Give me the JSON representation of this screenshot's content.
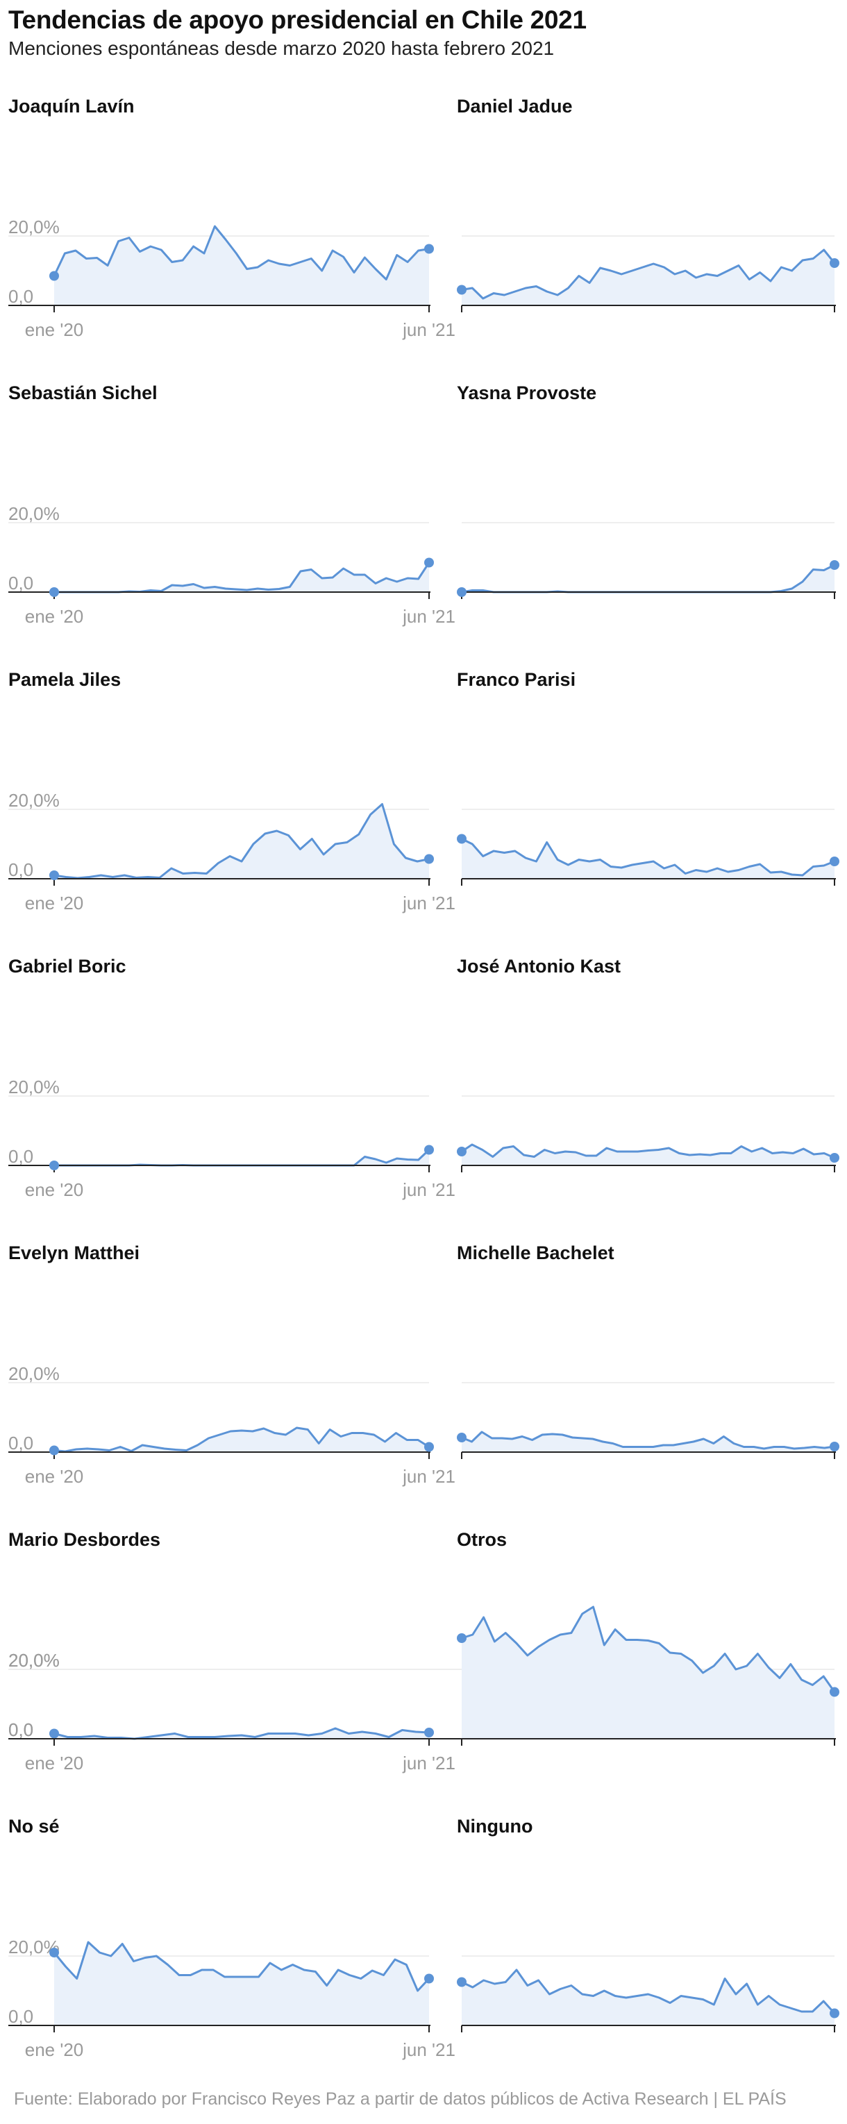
{
  "title": "Tendencias de apoyo presidencial en Chile 2021",
  "subtitle": "Menciones espontáneas desde marzo 2020 hasta febrero 2021",
  "source": "Fuente: Elaborado por Francisco Reyes Paz a partir de datos públicos de Activa Research | EL PAÍS",
  "colors": {
    "line": "#5b93d6",
    "area": "#eaf1fa",
    "axis": "#222222",
    "grid": "#dddddd",
    "tick_label": "#9a9a9a"
  },
  "chart_data": [
    {
      "type": "area",
      "title": "Joaquín Lavín",
      "y_ticks": [
        "20,0%",
        "0,0"
      ],
      "x_ticks": [
        "ene '20",
        "jun '21"
      ],
      "ylim": [
        0,
        30
      ],
      "values": [
        8.5,
        15,
        15.8,
        13.5,
        13.7,
        11.5,
        18.5,
        19.5,
        15.5,
        17,
        16,
        12.5,
        13,
        17,
        15,
        22.8,
        19,
        15,
        10.5,
        11,
        13,
        12,
        11.5,
        12.5,
        13.5,
        10,
        15.8,
        14,
        9.5,
        13.8,
        10.5,
        7.5,
        14.5,
        12.5,
        15.8,
        16.3
      ]
    },
    {
      "type": "area",
      "title": "Daniel Jadue",
      "y_ticks": [],
      "x_ticks": [],
      "ylim": [
        0,
        30
      ],
      "values": [
        4.5,
        5,
        2,
        3.5,
        3,
        4,
        5,
        5.5,
        4,
        3,
        5,
        8.5,
        6.5,
        10.8,
        10,
        9,
        10,
        11,
        12,
        11,
        9,
        10,
        8,
        9,
        8.5,
        10,
        11.5,
        7.5,
        9.5,
        7,
        11,
        10,
        13,
        13.5,
        16,
        12.2
      ]
    },
    {
      "type": "area",
      "title": "Sebastián Sichel",
      "y_ticks": [
        "20,0%",
        "0,0"
      ],
      "x_ticks": [
        "ene '20",
        "jun '21"
      ],
      "ylim": [
        0,
        30
      ],
      "values": [
        0,
        0,
        0,
        0,
        0,
        0,
        0,
        0.2,
        0.1,
        0.5,
        0.3,
        2,
        1.8,
        2.3,
        1.2,
        1.5,
        1,
        0.8,
        0.6,
        1,
        0.7,
        0.9,
        1.5,
        6,
        6.5,
        4,
        4.2,
        6.8,
        5,
        5,
        2.5,
        4,
        3,
        4,
        3.8,
        8.5
      ]
    },
    {
      "type": "area",
      "title": "Yasna Provoste",
      "y_ticks": [],
      "x_ticks": [],
      "ylim": [
        0,
        30
      ],
      "values": [
        0,
        0.5,
        0.5,
        0,
        0,
        0,
        0,
        0,
        0,
        0.2,
        0,
        0,
        0,
        0,
        0,
        0,
        0,
        0,
        0,
        0,
        0,
        0,
        0,
        0,
        0,
        0,
        0,
        0,
        0,
        0,
        0.3,
        1,
        3,
        6.5,
        6.3,
        7.8
      ]
    },
    {
      "type": "area",
      "title": "Pamela Jiles",
      "y_ticks": [
        "20,0%",
        "0,0"
      ],
      "x_ticks": [
        "ene '20",
        "jun '21"
      ],
      "ylim": [
        0,
        30
      ],
      "values": [
        1,
        0.5,
        0.2,
        0.5,
        1,
        0.5,
        1,
        0.3,
        0.5,
        0.3,
        3,
        1.5,
        1.7,
        1.5,
        4.5,
        6.5,
        5,
        10,
        13,
        13.8,
        12.5,
        8.5,
        11.5,
        7,
        10,
        10.5,
        12.8,
        18.5,
        21.5,
        10,
        6,
        5,
        5.7
      ]
    },
    {
      "type": "area",
      "title": "Franco Parisi",
      "y_ticks": [],
      "x_ticks": [],
      "ylim": [
        0,
        30
      ],
      "values": [
        11.5,
        10,
        6.5,
        8,
        7.5,
        8,
        6,
        5,
        10.5,
        5.5,
        4,
        5.5,
        5,
        5.5,
        3.5,
        3.2,
        4,
        4.5,
        5,
        3,
        4,
        1.5,
        2.5,
        2,
        3,
        2,
        2.5,
        3.5,
        4.2,
        1.8,
        2,
        1.2,
        1,
        3.5,
        3.8,
        5
      ]
    },
    {
      "type": "area",
      "title": "Gabriel Boric",
      "y_ticks": [
        "20,0%",
        "0,0"
      ],
      "x_ticks": [
        "ene '20",
        "jun '21"
      ],
      "ylim": [
        0,
        30
      ],
      "values": [
        0,
        0,
        0,
        0,
        0,
        0,
        0,
        0,
        0.2,
        0.1,
        0,
        0,
        0.1,
        0,
        0,
        0,
        0,
        0,
        0,
        0,
        0,
        0,
        0,
        0,
        0,
        0,
        0,
        0,
        0,
        2.5,
        1.8,
        0.8,
        2,
        1.7,
        1.6,
        4.5
      ]
    },
    {
      "type": "area",
      "title": "José Antonio Kast",
      "y_ticks": [],
      "x_ticks": [],
      "ylim": [
        0,
        30
      ],
      "values": [
        4,
        6,
        4.5,
        2.5,
        5,
        5.5,
        3,
        2.5,
        4.5,
        3.5,
        4,
        3.8,
        2.8,
        2.8,
        5,
        4,
        4,
        4,
        4.3,
        4.5,
        5,
        3.5,
        3,
        3.2,
        3,
        3.5,
        3.5,
        5.5,
        4,
        5,
        3.5,
        3.8,
        3.5,
        4.8,
        3.2,
        3.5,
        2.2
      ]
    },
    {
      "type": "area",
      "title": "Evelyn Matthei",
      "y_ticks": [
        "20,0%",
        "0,0"
      ],
      "x_ticks": [
        "ene '20",
        "jun '21"
      ],
      "ylim": [
        0,
        30
      ],
      "values": [
        0.5,
        0.2,
        0.8,
        1,
        0.8,
        0.5,
        1.5,
        0.3,
        2,
        1.5,
        1,
        0.7,
        0.5,
        2,
        4,
        5,
        6,
        6.2,
        6,
        6.8,
        5.5,
        5,
        7,
        6.5,
        2.5,
        6.5,
        4.5,
        5.5,
        5.5,
        5,
        3,
        5.5,
        3.5,
        3.5,
        1.5
      ]
    },
    {
      "type": "area",
      "title": "Michelle Bachelet",
      "y_ticks": [],
      "x_ticks": [],
      "ylim": [
        0,
        30
      ],
      "values": [
        4.2,
        3,
        5.8,
        4,
        4,
        3.8,
        4.5,
        3.5,
        5,
        5.2,
        5,
        4.2,
        4,
        3.8,
        3,
        2.5,
        1.5,
        1.5,
        1.5,
        1.5,
        2,
        2,
        2.5,
        3,
        3.8,
        2.5,
        4.5,
        2.5,
        1.5,
        1.5,
        1,
        1.5,
        1.5,
        1,
        1.2,
        1.5,
        1.2,
        1.6
      ]
    },
    {
      "type": "area",
      "title": "Mario Desbordes",
      "y_ticks": [
        "20,0%",
        "0,0"
      ],
      "x_ticks": [
        "ene '20",
        "jun '21"
      ],
      "ylim": [
        0,
        30
      ],
      "values": [
        1.5,
        0.5,
        0.5,
        0.8,
        0.3,
        0.3,
        0,
        0.5,
        1,
        1.5,
        0.5,
        0.5,
        0.5,
        0.8,
        1,
        0.5,
        1.5,
        1.5,
        1.5,
        1,
        1.5,
        3,
        1.5,
        2,
        1.5,
        0.5,
        2.5,
        2,
        1.8
      ]
    },
    {
      "type": "area",
      "title": "Otros",
      "y_ticks": [
        "20,0%",
        "0,0"
      ],
      "x_ticks": [],
      "ylim": [
        0,
        30
      ],
      "values": [
        29,
        30,
        35,
        28,
        30.5,
        27.5,
        24,
        26.5,
        28.5,
        30,
        30.5,
        36,
        38,
        27,
        31.5,
        28.5,
        28.5,
        28.3,
        27.5,
        24.8,
        24.5,
        22.5,
        19,
        21,
        24.5,
        20,
        21,
        24.5,
        20.5,
        17.5,
        21.5,
        17,
        15.5,
        18,
        13.5
      ]
    },
    {
      "type": "area",
      "title": "No sé",
      "y_ticks": [
        "20,0%",
        "0,0"
      ],
      "x_ticks": [
        "ene '20",
        "jun '21"
      ],
      "ylim": [
        0,
        30
      ],
      "values": [
        21,
        17,
        13.5,
        24,
        21,
        20,
        23.5,
        18.5,
        19.5,
        20,
        17.5,
        14.5,
        14.5,
        16,
        16,
        14,
        14,
        14,
        14,
        18,
        16,
        17.5,
        16,
        15.5,
        11.5,
        16,
        14.5,
        13.5,
        15.8,
        14.5,
        19,
        17.5,
        10,
        13.5
      ]
    },
    {
      "type": "area",
      "title": "Ninguno",
      "y_ticks": [],
      "x_ticks": [],
      "ylim": [
        0,
        30
      ],
      "values": [
        12.5,
        11,
        13,
        12,
        12.5,
        16,
        11.5,
        13,
        9,
        10.5,
        11.5,
        9,
        8.5,
        10,
        8.5,
        8,
        8.5,
        9,
        8,
        6.5,
        8.5,
        8,
        7.5,
        6,
        13.5,
        9,
        12,
        6,
        8.5,
        6,
        5,
        4,
        4,
        7,
        3.5
      ]
    }
  ]
}
